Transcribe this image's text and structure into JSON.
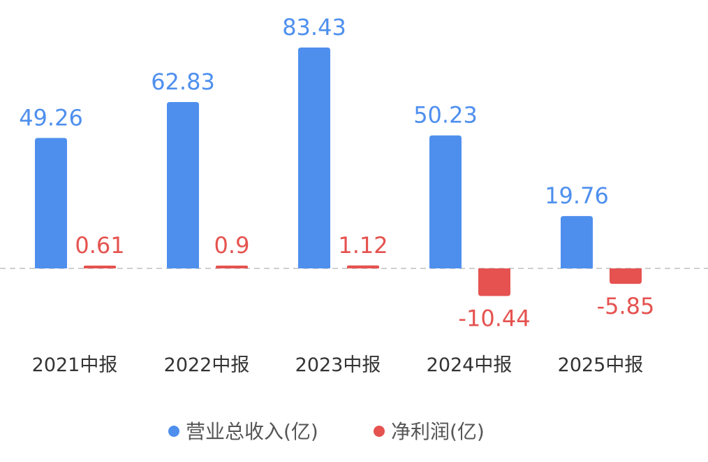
{
  "chart_data": {
    "type": "bar",
    "categories": [
      "2021中报",
      "2022中报",
      "2023中报",
      "2024中报",
      "2025中报"
    ],
    "series": [
      {
        "name": "营业总收入(亿)",
        "color": "#4e8fee",
        "values": [
          49.26,
          62.83,
          83.43,
          50.23,
          19.76
        ]
      },
      {
        "name": "净利润(亿)",
        "color": "#e5524f",
        "values": [
          0.61,
          0.9,
          1.12,
          -10.44,
          -5.85
        ]
      }
    ],
    "value_labels": {
      "revenue": [
        "49.26",
        "62.83",
        "83.43",
        "50.23",
        "19.76"
      ],
      "profit": [
        "0.61",
        "0.9",
        "1.12",
        "-10.44",
        "-5.85"
      ]
    },
    "legend_position": "bottom",
    "zero_line": "dashed"
  }
}
